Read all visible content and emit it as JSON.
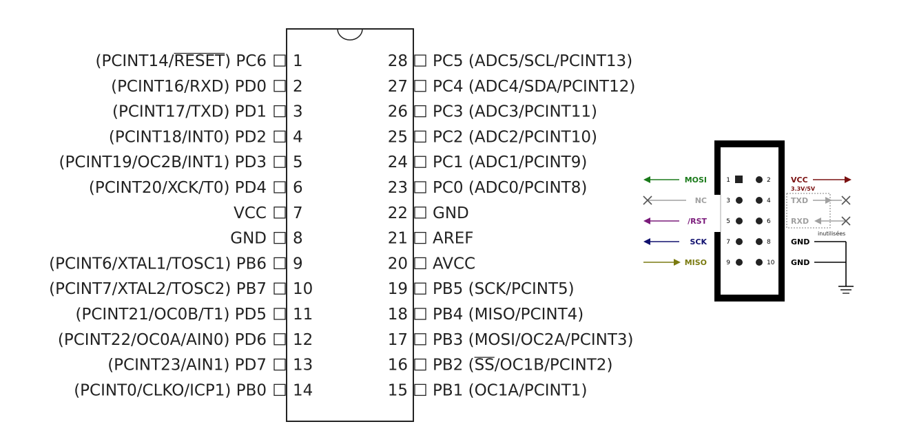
{
  "chip": {
    "left_pins": [
      {
        "num": "1",
        "label": "(PCINT14/RESET) PC6",
        "overbar": "RESET"
      },
      {
        "num": "2",
        "label": "(PCINT16/RXD) PD0"
      },
      {
        "num": "3",
        "label": "(PCINT17/TXD) PD1"
      },
      {
        "num": "4",
        "label": "(PCINT18/INT0) PD2"
      },
      {
        "num": "5",
        "label": "(PCINT19/OC2B/INT1) PD3"
      },
      {
        "num": "6",
        "label": "(PCINT20/XCK/T0) PD4"
      },
      {
        "num": "7",
        "label": "VCC"
      },
      {
        "num": "8",
        "label": "GND"
      },
      {
        "num": "9",
        "label": "(PCINT6/XTAL1/TOSC1) PB6"
      },
      {
        "num": "10",
        "label": "(PCINT7/XTAL2/TOSC2) PB7"
      },
      {
        "num": "11",
        "label": "(PCINT21/OC0B/T1) PD5"
      },
      {
        "num": "12",
        "label": "(PCINT22/OC0A/AIN0) PD6"
      },
      {
        "num": "13",
        "label": "(PCINT23/AIN1) PD7"
      },
      {
        "num": "14",
        "label": "(PCINT0/CLKO/ICP1) PB0"
      }
    ],
    "right_pins": [
      {
        "num": "28",
        "label": "PC5 (ADC5/SCL/PCINT13)"
      },
      {
        "num": "27",
        "label": "PC4 (ADC4/SDA/PCINT12)"
      },
      {
        "num": "26",
        "label": "PC3 (ADC3/PCINT11)"
      },
      {
        "num": "25",
        "label": "PC2 (ADC2/PCINT10)"
      },
      {
        "num": "24",
        "label": "PC1 (ADC1/PCINT9)"
      },
      {
        "num": "23",
        "label": "PC0 (ADC0/PCINT8)"
      },
      {
        "num": "22",
        "label": "GND"
      },
      {
        "num": "21",
        "label": "AREF"
      },
      {
        "num": "20",
        "label": "AVCC"
      },
      {
        "num": "19",
        "label": "PB5 (SCK/PCINT5)"
      },
      {
        "num": "18",
        "label": "PB4 (MISO/PCINT4)"
      },
      {
        "num": "17",
        "label": "PB3 (MOSI/OC2A/PCINT3)"
      },
      {
        "num": "16",
        "label": "PB2 (SS/OC1B/PCINT2)",
        "overbar": "SS"
      },
      {
        "num": "15",
        "label": "PB1 (OC1A/PCINT1)"
      }
    ]
  },
  "isp": {
    "rows": [
      {
        "left": {
          "num": "1",
          "signal": "MOSI",
          "color": "#1a7a1a",
          "arrow": "out"
        },
        "right": {
          "num": "2",
          "signal": "VCC",
          "color": "#7a1010",
          "arrow": "out",
          "note": "3.3V/5V"
        }
      },
      {
        "left": {
          "num": "3",
          "signal": "NC",
          "color": "#a0a0a0",
          "arrow": "none"
        },
        "right": {
          "num": "4",
          "signal": "TXD",
          "color": "#a0a0a0",
          "arrow": "out-x"
        }
      },
      {
        "left": {
          "num": "5",
          "signal": "/RST",
          "color": "#7a1a7a",
          "arrow": "out"
        },
        "right": {
          "num": "6",
          "signal": "RXD",
          "color": "#a0a0a0",
          "arrow": "in-x"
        }
      },
      {
        "left": {
          "num": "7",
          "signal": "SCK",
          "color": "#10106e",
          "arrow": "out"
        },
        "right": {
          "num": "8",
          "signal": "GND",
          "color": "#000000",
          "arrow": "gnd"
        }
      },
      {
        "left": {
          "num": "9",
          "signal": "MISO",
          "color": "#7a7a10",
          "arrow": "in"
        },
        "right": {
          "num": "10",
          "signal": "GND",
          "color": "#000000",
          "arrow": "gnd"
        }
      }
    ],
    "unused_note": "inutilisées"
  }
}
